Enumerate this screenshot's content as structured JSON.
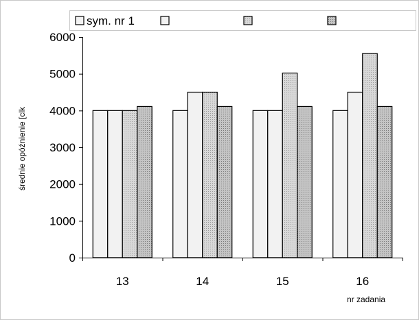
{
  "chart_data": {
    "type": "bar",
    "categories": [
      "13",
      "14",
      "15",
      "16"
    ],
    "series": [
      {
        "name": "sym. nr 1",
        "values": [
          4000,
          4000,
          4000,
          4000
        ],
        "color": "#f2f2f2"
      },
      {
        "name": "",
        "values": [
          4000,
          4500,
          4000,
          4500
        ],
        "color": "#f2f2f2"
      },
      {
        "name": "",
        "values": [
          4000,
          4500,
          5020,
          5550
        ],
        "color": "#d6d6d6"
      },
      {
        "name": "",
        "values": [
          4110,
          4110,
          4110,
          4110
        ],
        "color": "#bdbdbd"
      }
    ],
    "ylim": [
      0,
      6000
    ],
    "yticks": [
      "0",
      "1000",
      "2000",
      "3000",
      "4000",
      "5000",
      "6000"
    ],
    "ylabel": "średnie opóźnienie [clk",
    "xlabel": "nr zadania",
    "grid": false,
    "legend_position": "top"
  }
}
